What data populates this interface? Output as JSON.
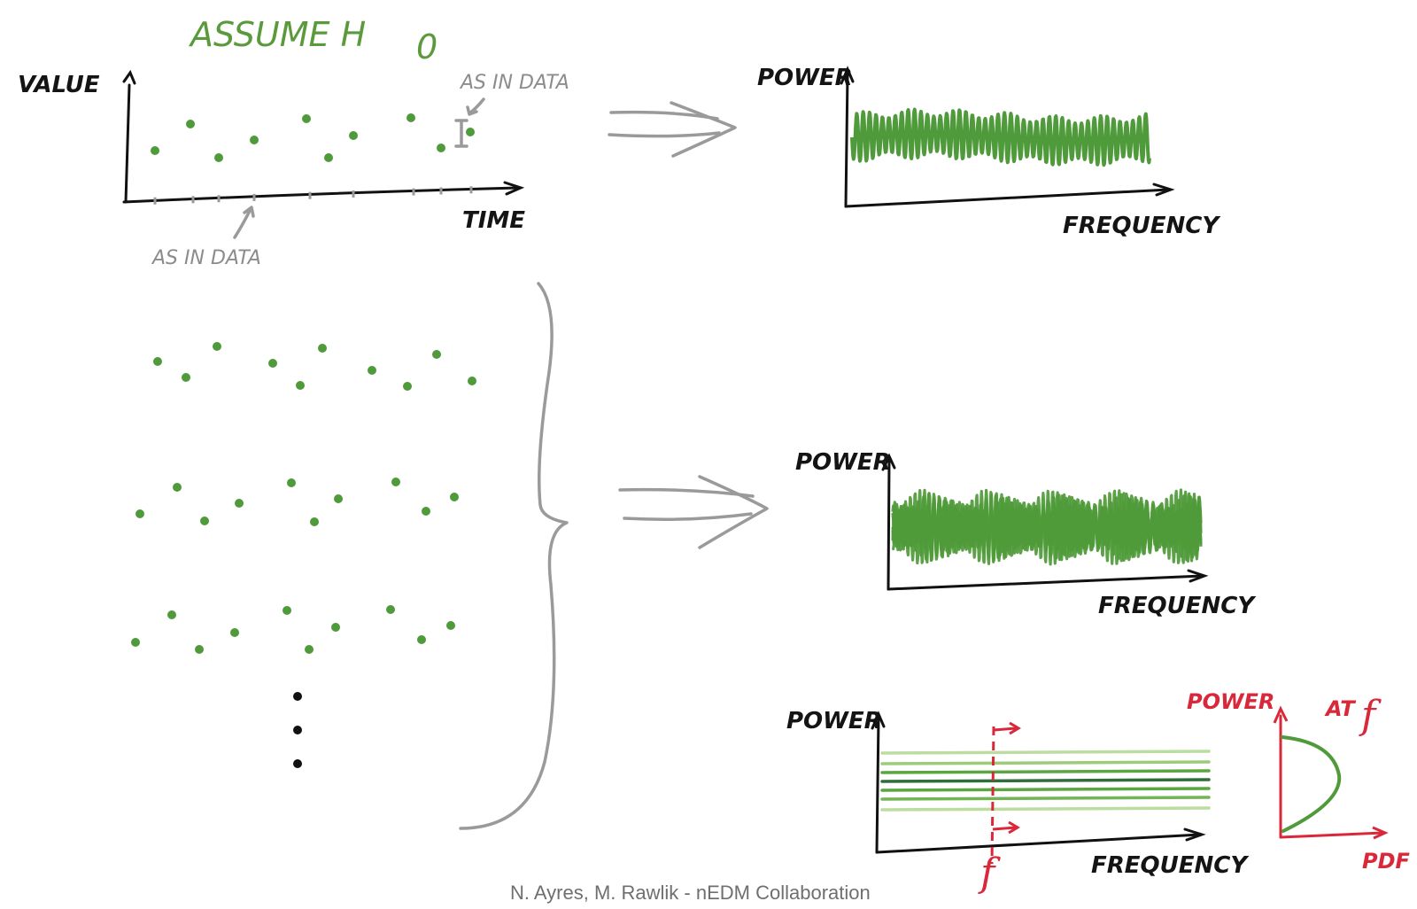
{
  "title": "ASSUME H",
  "title_subscript": "0",
  "top_plot": {
    "y_label": "VALUE",
    "x_label": "TIME",
    "annotation_errorbar": "AS IN DATA",
    "annotation_ticks": "AS IN DATA"
  },
  "spectrum_single": {
    "y_label": "POWER",
    "x_label": "FREQUENCY"
  },
  "spectrum_many": {
    "y_label": "POWER",
    "x_label": "FREQUENCY"
  },
  "band_plot": {
    "y_label": "POWER",
    "x_label": "FREQUENCY",
    "f_marker": "f"
  },
  "pdf_plot": {
    "y_label": "POWER",
    "at_label": "AT",
    "f_symbol": "f",
    "x_label": "PDF"
  },
  "footer": "N. Ayres, M. Rawlik - nEDM Collaboration",
  "colors": {
    "green": "#4f9a3a",
    "red": "#d8283a",
    "gray": "#9a9a9a",
    "ink": "#141414"
  }
}
